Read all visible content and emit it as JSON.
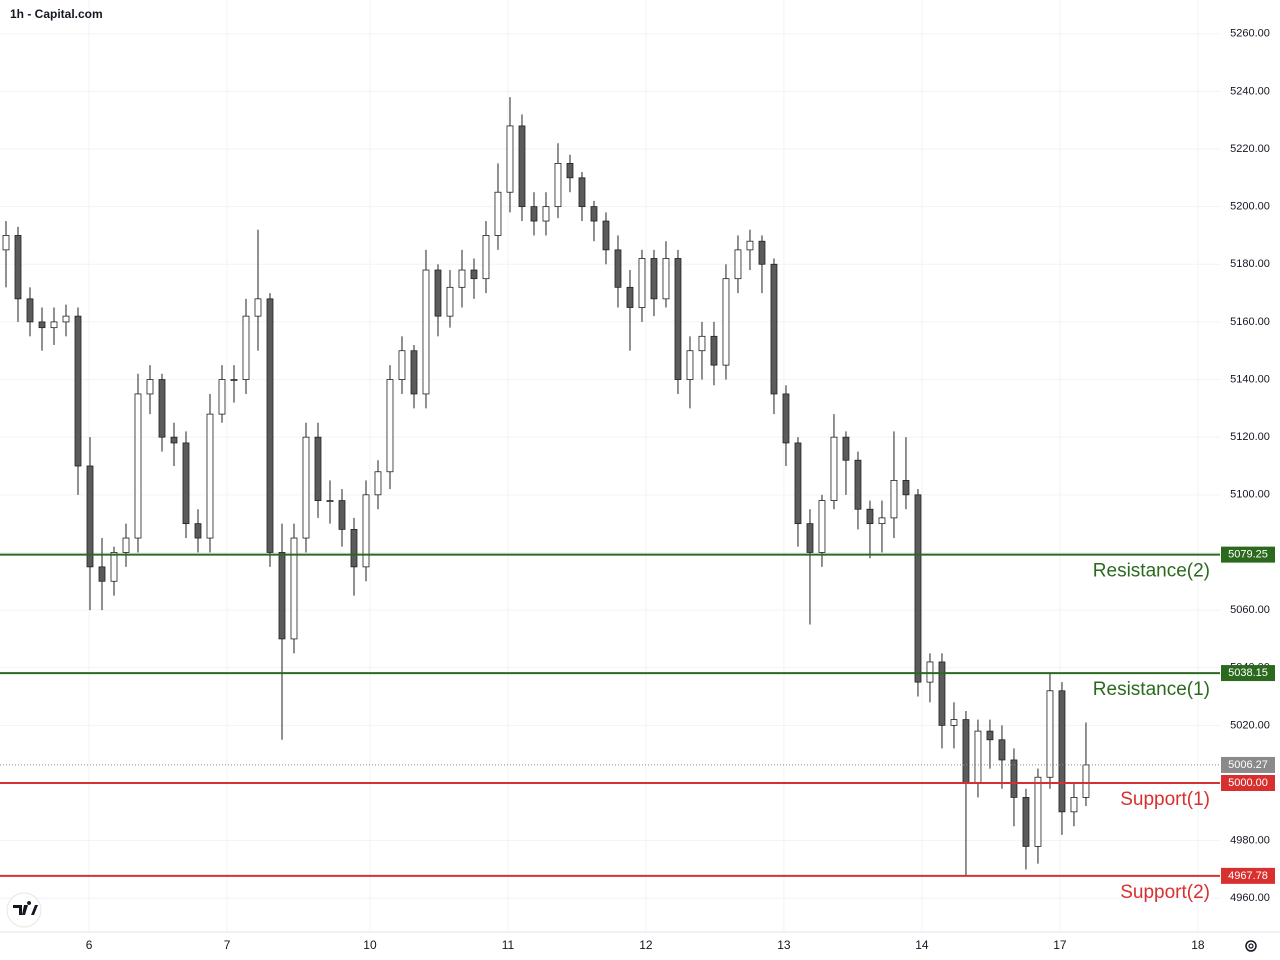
{
  "chart_data": {
    "type": "candlestick",
    "title": "1h - Capital.com",
    "up_color": "#ffffff",
    "down_color": "#5b5b5b",
    "edge_color": "#222222",
    "grid": true,
    "open": [
      5185,
      5190,
      5168,
      5160,
      5158,
      5160,
      5162,
      5110,
      5075,
      5070,
      5080,
      5085,
      5135,
      5140,
      5120,
      5118,
      5090,
      5085,
      5128,
      5140,
      5140,
      5162,
      5168,
      5080,
      5050,
      5085,
      5120,
      5098,
      5098,
      5088,
      5075,
      5100,
      5108,
      5140,
      5150,
      5135,
      5178,
      5162,
      5172,
      5178,
      5175,
      5190,
      5205,
      5228,
      5200,
      5195,
      5200,
      5215,
      5210,
      5200,
      5195,
      5185,
      5172,
      5165,
      5182,
      5168,
      5182,
      5140,
      5150,
      5155,
      5145,
      5175,
      5185,
      5188,
      5180,
      5135,
      5118,
      5090,
      5080,
      5098,
      5120,
      5112,
      5095,
      5090,
      5092,
      5105,
      5100,
      5035,
      5042,
      5020,
      5022,
      5000,
      5018,
      5015,
      5008,
      4995,
      4978,
      5002,
      5032,
      4990,
      4995
    ],
    "high": [
      5195,
      5193,
      5172,
      5165,
      5165,
      5166,
      5165,
      5120,
      5085,
      5082,
      5090,
      5142,
      5145,
      5142,
      5125,
      5122,
      5095,
      5135,
      5145,
      5145,
      5168,
      5192,
      5170,
      5090,
      5090,
      5125,
      5125,
      5105,
      5102,
      5092,
      5105,
      5112,
      5145,
      5155,
      5152,
      5185,
      5180,
      5178,
      5185,
      5182,
      5195,
      5215,
      5238,
      5232,
      5205,
      5205,
      5222,
      5218,
      5212,
      5202,
      5198,
      5190,
      5178,
      5185,
      5185,
      5188,
      5185,
      5155,
      5160,
      5160,
      5180,
      5190,
      5192,
      5190,
      5182,
      5138,
      5120,
      5095,
      5100,
      5128,
      5122,
      5115,
      5098,
      5098,
      5122,
      5120,
      5102,
      5045,
      5045,
      5028,
      5025,
      5022,
      5022,
      5020,
      5012,
      4998,
      5005,
      5038,
      5035,
      5000,
      5021
    ],
    "low": [
      5172,
      5160,
      5155,
      5150,
      5152,
      5155,
      5100,
      5060,
      5060,
      5065,
      5075,
      5080,
      5128,
      5115,
      5110,
      5085,
      5080,
      5080,
      5125,
      5132,
      5135,
      5150,
      5075,
      5015,
      5045,
      5080,
      5092,
      5090,
      5082,
      5065,
      5070,
      5095,
      5102,
      5135,
      5130,
      5130,
      5155,
      5158,
      5165,
      5168,
      5170,
      5185,
      5198,
      5195,
      5190,
      5190,
      5196,
      5205,
      5195,
      5188,
      5180,
      5165,
      5150,
      5160,
      5162,
      5165,
      5135,
      5130,
      5140,
      5138,
      5140,
      5170,
      5178,
      5170,
      5128,
      5110,
      5082,
      5055,
      5075,
      5095,
      5100,
      5088,
      5078,
      5080,
      5085,
      5095,
      5030,
      5028,
      5012,
      5012,
      4968,
      4995,
      5005,
      4998,
      4985,
      4970,
      4972,
      4998,
      4982,
      4985,
      4992
    ],
    "close": [
      5190,
      5168,
      5160,
      5158,
      5160,
      5162,
      5110,
      5075,
      5070,
      5080,
      5085,
      5135,
      5140,
      5120,
      5118,
      5090,
      5085,
      5128,
      5140,
      5140,
      5162,
      5168,
      5080,
      5050,
      5085,
      5120,
      5098,
      5098,
      5088,
      5075,
      5100,
      5108,
      5140,
      5150,
      5135,
      5178,
      5162,
      5172,
      5178,
      5175,
      5190,
      5205,
      5228,
      5200,
      5195,
      5200,
      5215,
      5210,
      5200,
      5195,
      5185,
      5172,
      5165,
      5182,
      5168,
      5182,
      5140,
      5150,
      5155,
      5145,
      5175,
      5185,
      5188,
      5180,
      5135,
      5118,
      5090,
      5080,
      5098,
      5120,
      5112,
      5095,
      5090,
      5092,
      5105,
      5100,
      5035,
      5042,
      5020,
      5022,
      5000,
      5018,
      5015,
      5008,
      4995,
      4978,
      5002,
      5032,
      4990,
      4995,
      5006.27
    ],
    "ylim": [
      4948.3,
      5271.7
    ],
    "yticks": [
      {
        "value": 4960,
        "label": "4960.00"
      },
      {
        "value": 4980,
        "label": "4980.00"
      },
      {
        "value": 5000,
        "label": "5000.00"
      },
      {
        "value": 5020,
        "label": "5020.00"
      },
      {
        "value": 5040,
        "label": "5040.00"
      },
      {
        "value": 5060,
        "label": "5060.00"
      },
      {
        "value": 5080,
        "label": "5080.00"
      },
      {
        "value": 5100,
        "label": "5100.00"
      },
      {
        "value": 5120,
        "label": "5120.00"
      },
      {
        "value": 5140,
        "label": "5140.00"
      },
      {
        "value": 5160,
        "label": "5160.00"
      },
      {
        "value": 5180,
        "label": "5180.00"
      },
      {
        "value": 5200,
        "label": "5200.00"
      },
      {
        "value": 5220,
        "label": "5220.00"
      },
      {
        "value": 5240,
        "label": "5240.00"
      },
      {
        "value": 5260,
        "label": "5260.00"
      }
    ],
    "xlim": [
      -0.5,
      101.17
    ],
    "xticks": [
      {
        "value": 6.92,
        "label": "6"
      },
      {
        "value": 18.42,
        "label": "7"
      },
      {
        "value": 30.33,
        "label": "10"
      },
      {
        "value": 41.83,
        "label": "11"
      },
      {
        "value": 53.33,
        "label": "12"
      },
      {
        "value": 64.83,
        "label": "13"
      },
      {
        "value": 76.33,
        "label": "14"
      },
      {
        "value": 87.83,
        "label": "17"
      },
      {
        "value": 99.33,
        "label": "18"
      }
    ],
    "levels": [
      {
        "name": "Resistance(2)",
        "value": 5079.25,
        "value_label": "5079.25",
        "color": "#2b6a1e"
      },
      {
        "name": "Resistance(1)",
        "value": 5038.15,
        "value_label": "5038.15",
        "color": "#2b6a1e"
      },
      {
        "name": "Support(1)",
        "value": 5000,
        "value_label": "5000.00",
        "color": "#d8302f"
      },
      {
        "name": "Support(2)",
        "value": 4967.78,
        "value_label": "4967.78",
        "color": "#d8302f"
      }
    ],
    "last_color": "#8a8a8a"
  }
}
